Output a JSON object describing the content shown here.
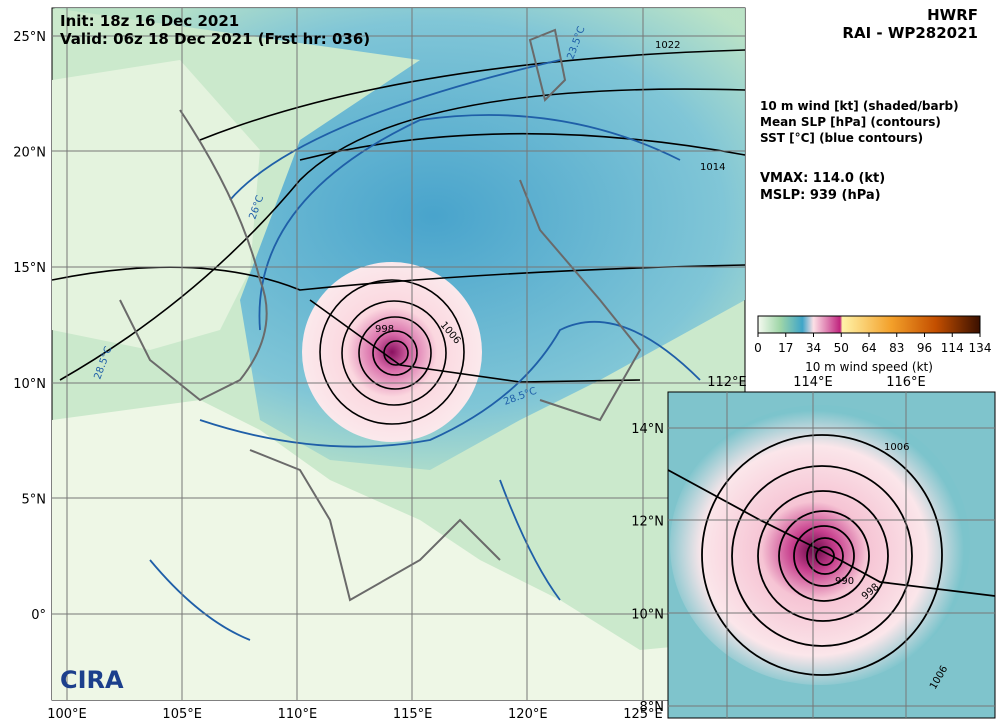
{
  "header": {
    "init": "Init:   18z 16 Dec 2021",
    "valid": "Valid: 06z 18 Dec 2021 (Frst hr: 036)",
    "model": "HWRF",
    "storm": "RAI - WP282021"
  },
  "legend": {
    "lines": [
      "10 m wind [kt] (shaded/barb)",
      "Mean SLP [hPa] (contours)",
      "SST [°C] (blue contours)"
    ],
    "vmax": "VMAX: 114.0 (kt)",
    "mslp": "MSLP:  939 (hPa)"
  },
  "colorbar": {
    "ticks": [
      0,
      17,
      34,
      50,
      64,
      83,
      96,
      114,
      134
    ],
    "label": "10 m wind speed (kt)"
  },
  "main_map": {
    "lat_labels": [
      "25°N",
      "20°N",
      "15°N",
      "10°N",
      "5°N",
      "0°"
    ],
    "lon_labels": [
      "100°E",
      "105°E",
      "110°E",
      "115°E",
      "120°E",
      "125°E"
    ],
    "contour_labels": [
      "1022",
      "1014",
      "1006",
      "998"
    ],
    "sst_labels": [
      "23.5°C",
      "26°C",
      "28.5°C",
      "28.5°C"
    ]
  },
  "inset_map": {
    "lon_labels": [
      "112°E",
      "114°E",
      "116°E"
    ],
    "lat_labels": [
      "14°N",
      "12°N",
      "10°N",
      "8°N"
    ],
    "contour_labels": [
      "1006",
      "998",
      "990",
      "1006"
    ]
  },
  "logo": "CIRA"
}
